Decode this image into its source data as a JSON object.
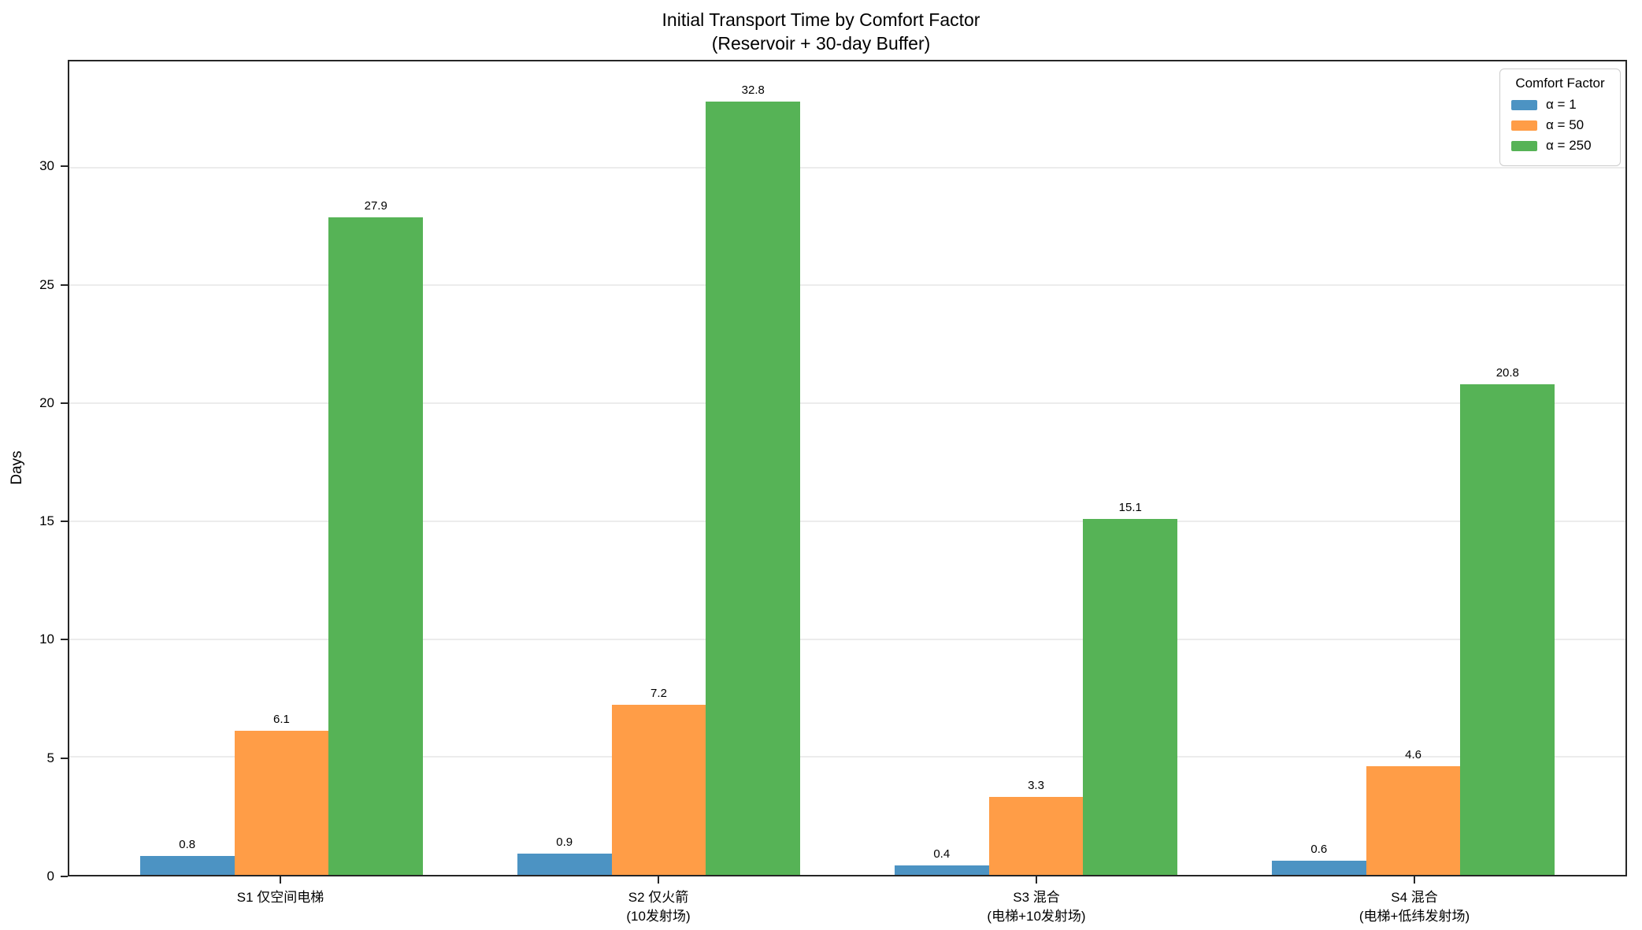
{
  "chart_data": {
    "type": "bar",
    "title": "Initial Transport Time by Comfort Factor",
    "subtitle": "(Reservoir + 30-day Buffer)",
    "ylabel": "Days",
    "ylim": [
      0,
      34.5
    ],
    "yticks": [
      0,
      5,
      10,
      15,
      20,
      25,
      30
    ],
    "grid": "horizontal",
    "gridline_color": "#ececec",
    "spine_color": "#262626",
    "legend": {
      "title": "Comfort Factor",
      "position": "upper right"
    },
    "categories": [
      {
        "lines": [
          "S1 仅空间电梯"
        ]
      },
      {
        "lines": [
          "S2 仅火箭",
          "(10发射场)"
        ]
      },
      {
        "lines": [
          "S3 混合",
          "(电梯+10发射场)"
        ]
      },
      {
        "lines": [
          "S4 混合",
          "(电梯+低纬发射场)"
        ]
      }
    ],
    "series": [
      {
        "name": "α = 1",
        "color": "#4C93C3",
        "values": [
          0.8,
          0.9,
          0.4,
          0.6
        ]
      },
      {
        "name": "α = 50",
        "color": "#FF9D47",
        "values": [
          6.1,
          7.2,
          3.3,
          4.6
        ]
      },
      {
        "name": "α = 250",
        "color": "#56B356",
        "values": [
          27.9,
          32.8,
          15.1,
          20.8
        ]
      }
    ]
  }
}
